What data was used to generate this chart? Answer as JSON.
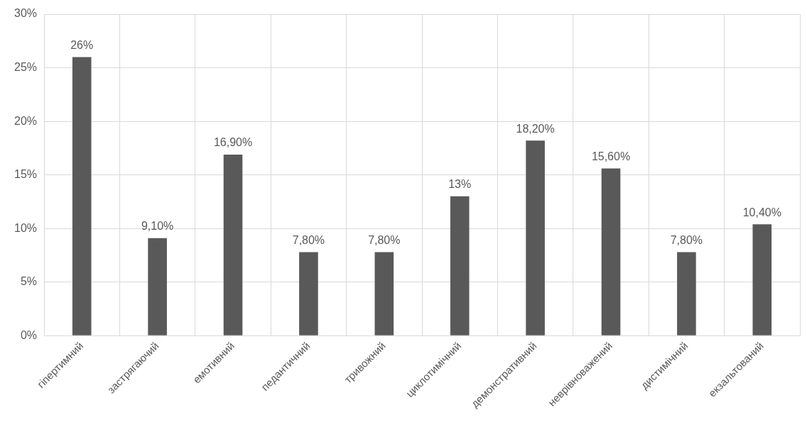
{
  "chart_data": {
    "type": "bar",
    "categories": [
      "гіпертимний",
      "застрягаючий",
      "емотивний",
      "педантичний",
      "тривожний",
      "циклотимічний",
      "демонстративний",
      "неврівноважений",
      "дистимічний",
      "екзальтований"
    ],
    "values": [
      26,
      9.1,
      16.9,
      7.8,
      7.8,
      13,
      18.2,
      15.6,
      7.8,
      10.4
    ],
    "value_labels": [
      "26%",
      "9,10%",
      "16,90%",
      "7,80%",
      "7,80%",
      "13%",
      "18,20%",
      "15,60%",
      "7,80%",
      "10,40%"
    ],
    "color": "#595959",
    "ylim": [
      0,
      30
    ],
    "yticks": [
      {
        "value": 0,
        "label": "0%"
      },
      {
        "value": 5,
        "label": "5%"
      },
      {
        "value": 10,
        "label": "10%"
      },
      {
        "value": 15,
        "label": "15%"
      },
      {
        "value": 20,
        "label": "20%"
      },
      {
        "value": 25,
        "label": "25%"
      },
      {
        "value": 30,
        "label": "30%"
      }
    ],
    "grid": true,
    "legend": false
  }
}
